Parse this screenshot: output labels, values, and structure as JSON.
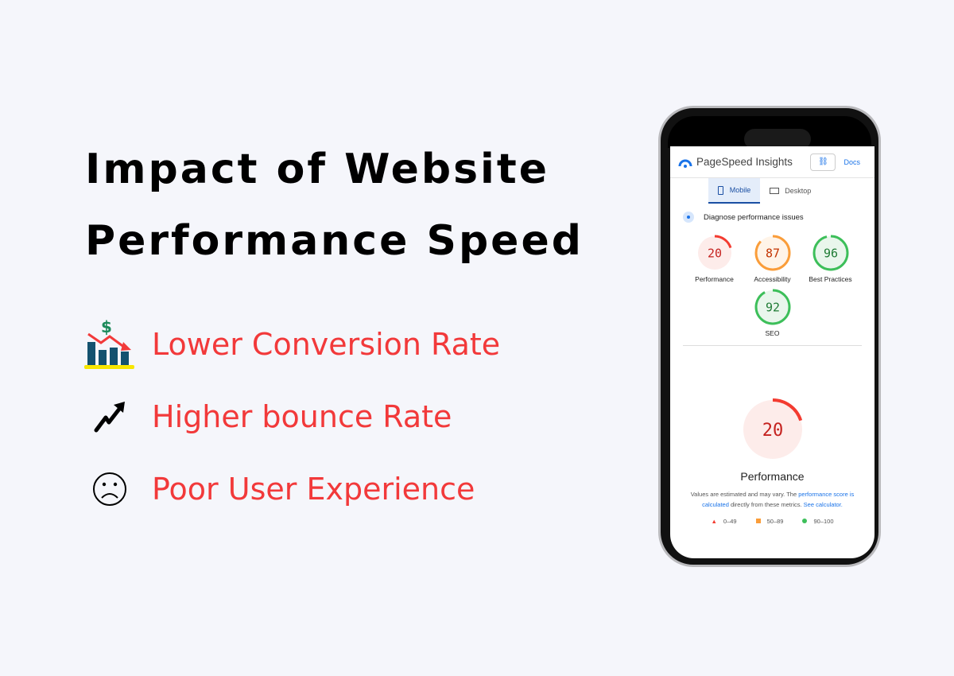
{
  "title": {
    "line1": "Impact of Website",
    "line2": "Performance Speed"
  },
  "impacts": [
    {
      "icon": "revenue-decline-chart-icon",
      "label": "Lower Conversion Rate"
    },
    {
      "icon": "trend-up-arrow-icon",
      "label": "Higher bounce Rate"
    },
    {
      "icon": "sad-face-icon",
      "label": "Poor User Experience"
    }
  ],
  "psi": {
    "app_title": "PageSpeed Insights",
    "docs": "Docs",
    "tabs": [
      "Mobile",
      "Desktop"
    ],
    "diagnose": "Diagnose performance issues",
    "scores": [
      {
        "label": "Performance",
        "value": 20,
        "color": "#f33b30",
        "bg": "#fdecea",
        "text": "#c5221f"
      },
      {
        "label": "Accessibility",
        "value": 87,
        "color": "#fa9d3a",
        "bg": "#fff4e8",
        "text": "#c33300"
      },
      {
        "label": "Best Practices",
        "value": 96,
        "color": "#3dbf5a",
        "bg": "#e9f6ec",
        "text": "#1e7b34"
      },
      {
        "label": "SEO",
        "value": 92,
        "color": "#3dbf5a",
        "bg": "#e9f6ec",
        "text": "#1e7b34"
      }
    ],
    "main_score": {
      "label": "Performance",
      "value": "20"
    },
    "note": {
      "t1": "Values are estimated and may vary. The ",
      "l1": "performance score is calculated",
      "t2": " directly from these metrics. ",
      "l2": "See calculator."
    },
    "legend": [
      "0–49",
      "50–89",
      "90–100"
    ]
  }
}
